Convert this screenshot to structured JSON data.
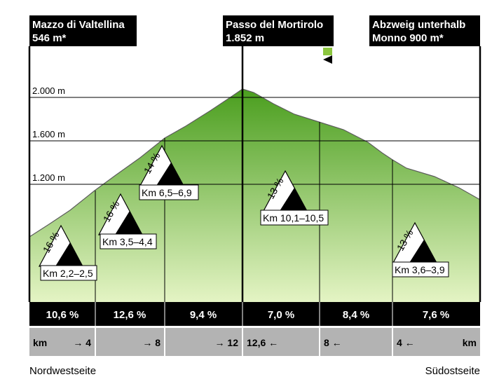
{
  "locations": {
    "left": {
      "line1": "Mazzo di Valtellina",
      "line2": "546 m*"
    },
    "center": {
      "line1": "Passo del Mortirolo",
      "line2": "1.852 m"
    },
    "right": {
      "line1": "Abzweig unterhalb",
      "line2": "Monno  900 m*"
    }
  },
  "elevation_labels": [
    "2.000 m",
    "1.600 m",
    "1.200 m"
  ],
  "steep_markers": [
    {
      "percent": "16 %",
      "range": "Km 2,2–2,5"
    },
    {
      "percent": "16 %",
      "range": "Km 3,5–4,4"
    },
    {
      "percent": "14 %",
      "range": "Km 6,5–6,9"
    },
    {
      "percent": "13 %",
      "range": "Km 10,1–10,5"
    },
    {
      "percent": "13 %",
      "range": "Km 3,6–3,9"
    }
  ],
  "segment_gradients": [
    "10,6 %",
    "12,6 %",
    "9,4 %",
    "7,0 %",
    "8,4 %",
    "7,6 %"
  ],
  "km_scale": {
    "left_unit": "km",
    "left_marks": [
      "→ 4",
      "→ 8",
      "→ 12"
    ],
    "right_marks": [
      "12,6 ←",
      "8 ←",
      "4 ←"
    ],
    "right_unit": "km"
  },
  "sides": {
    "left": "Nordwestseite",
    "right": "Südostseite"
  },
  "colors": {
    "fill_top": "#4a9e1e",
    "fill_bottom": "#e4f4c4",
    "bar": "#000000",
    "scale_bar": "#b3b3b3",
    "flag": "#8cc63f"
  }
}
